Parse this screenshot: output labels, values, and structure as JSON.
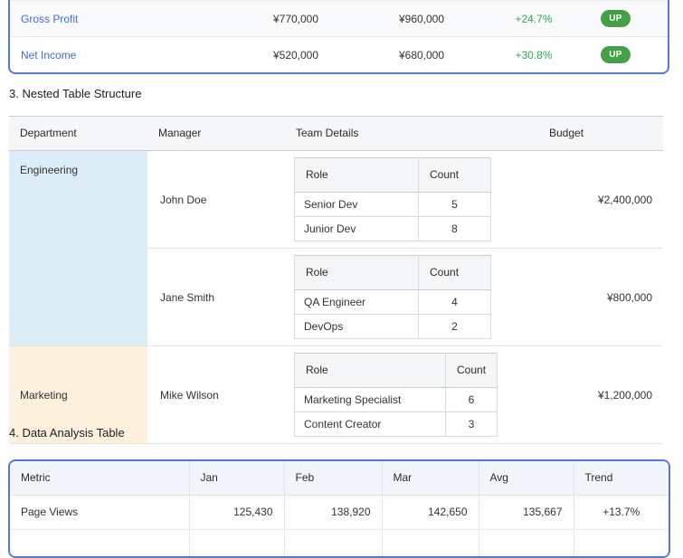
{
  "colors": {
    "accent_blue": "#3b6fd1",
    "table_border_blue": "#5577d6",
    "positive_green": "#2ea750",
    "badge_green": "#43a047",
    "engineering_row_bg": "#ddedf8",
    "marketing_row_bg": "#fdf1dd"
  },
  "financial": {
    "rows": [
      {
        "metric": "Gross Profit",
        "value1": "¥770,000",
        "value2": "¥960,000",
        "change": "+24.7%",
        "badge": "UP"
      },
      {
        "metric": "Net Income",
        "value1": "¥520,000",
        "value2": "¥680,000",
        "change": "+30.8%",
        "badge": "UP"
      }
    ]
  },
  "nested": {
    "heading": "3. Nested Table Structure",
    "headers": [
      "Department",
      "Manager",
      "Team Details",
      "Budget"
    ],
    "team_headers": [
      "Role",
      "Count"
    ],
    "groups": [
      {
        "department": "Engineering",
        "managers": [
          {
            "name": "John Doe",
            "budget": "¥2,400,000",
            "team": [
              [
                "Senior Dev",
                "5"
              ],
              [
                "Junior Dev",
                "8"
              ]
            ]
          },
          {
            "name": "Jane Smith",
            "budget": "¥800,000",
            "team": [
              [
                "QA Engineer",
                "4"
              ],
              [
                "DevOps",
                "2"
              ]
            ]
          }
        ]
      },
      {
        "department": "Marketing",
        "managers": [
          {
            "name": "Mike Wilson",
            "budget": "¥1,200,000",
            "team": [
              [
                "Marketing Specialist",
                "6"
              ],
              [
                "Content Creator",
                "3"
              ]
            ]
          }
        ]
      }
    ]
  },
  "analysis": {
    "heading": "4. Data Analysis Table",
    "headers": [
      "Metric",
      "Jan",
      "Feb",
      "Mar",
      "Avg",
      "Trend"
    ],
    "rows": [
      {
        "metric": "Page Views",
        "jan": "125,430",
        "feb": "138,920",
        "mar": "142,650",
        "avg": "135,667",
        "trend": "+13.7%"
      }
    ]
  }
}
